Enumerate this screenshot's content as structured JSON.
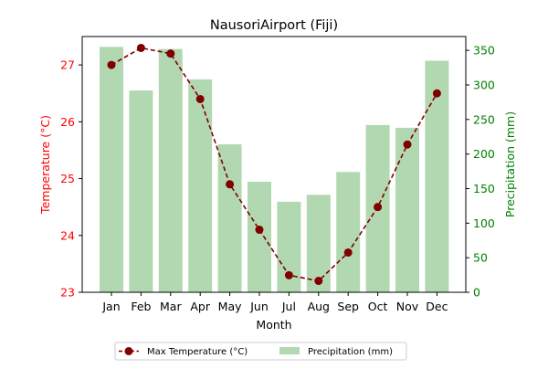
{
  "chart_data": {
    "type": "bar",
    "title": "NausoriAirport (Fiji)",
    "xlabel": "Month",
    "categories": [
      "Jan",
      "Feb",
      "Mar",
      "Apr",
      "May",
      "Jun",
      "Jul",
      "Aug",
      "Sep",
      "Oct",
      "Nov",
      "Dec"
    ],
    "y_left": {
      "label": "Temperature (°C)",
      "range": [
        23,
        27.5
      ],
      "ticks": [
        23,
        24,
        25,
        26,
        27
      ],
      "color": "#ff0000"
    },
    "y_right": {
      "label": "Precipitation (mm)",
      "range": [
        0,
        370
      ],
      "ticks": [
        0,
        50,
        100,
        150,
        200,
        250,
        300,
        350
      ],
      "color": "#008000"
    },
    "series": [
      {
        "name": "Max Temperature (°C)",
        "type": "line",
        "axis": "left",
        "color": "#800000",
        "values": [
          27.0,
          27.3,
          27.2,
          26.4,
          24.9,
          24.1,
          23.3,
          23.2,
          23.7,
          24.5,
          25.6,
          26.5
        ]
      },
      {
        "name": "Precipitation (mm)",
        "type": "bar",
        "axis": "right",
        "color": "#b2d8b2",
        "values": [
          355,
          292,
          352,
          308,
          214,
          160,
          131,
          141,
          174,
          242,
          238,
          335
        ]
      }
    ],
    "legend_position": "bottom-center",
    "grid": false
  }
}
